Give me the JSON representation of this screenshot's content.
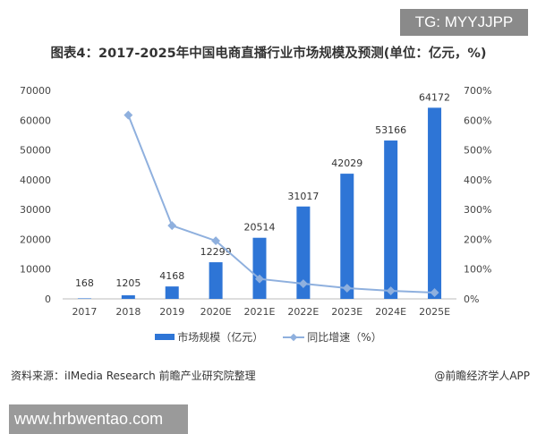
{
  "badge": "TG: MYYJJPP",
  "watermark_site": "www.hrbwentao.com",
  "source": "资料来源：iIMedia Research 前瞻产业研究院整理",
  "credit": "@前瞻经济学人APP",
  "chart_data": {
    "type": "bar",
    "title": "图表4：2017-2025年中国电商直播行业市场规模及预测(单位：亿元，%)",
    "categories": [
      "2017",
      "2018",
      "2019",
      "2020E",
      "2021E",
      "2022E",
      "2023E",
      "2024E",
      "2025E"
    ],
    "series": [
      {
        "name": "市场规模（亿元）",
        "type": "bar",
        "axis": "left",
        "color": "#2e75d6",
        "values": [
          168,
          1205,
          4168,
          12299,
          20514,
          31017,
          42029,
          53166,
          64172
        ]
      },
      {
        "name": "同比增速（%）",
        "type": "line",
        "axis": "right",
        "color": "#8fb0de",
        "values": [
          null,
          617,
          246,
          195,
          67,
          51,
          36,
          27,
          21
        ]
      }
    ],
    "left_axis": {
      "ylim": [
        0,
        70000
      ],
      "ticks": [
        "0",
        "10000",
        "20000",
        "30000",
        "40000",
        "50000",
        "60000",
        "70000"
      ]
    },
    "right_axis": {
      "ylim": [
        0,
        700
      ],
      "ticks": [
        "0%",
        "100%",
        "200%",
        "300%",
        "400%",
        "500%",
        "600%",
        "700%"
      ]
    },
    "legend_position": "bottom",
    "grid": false
  }
}
